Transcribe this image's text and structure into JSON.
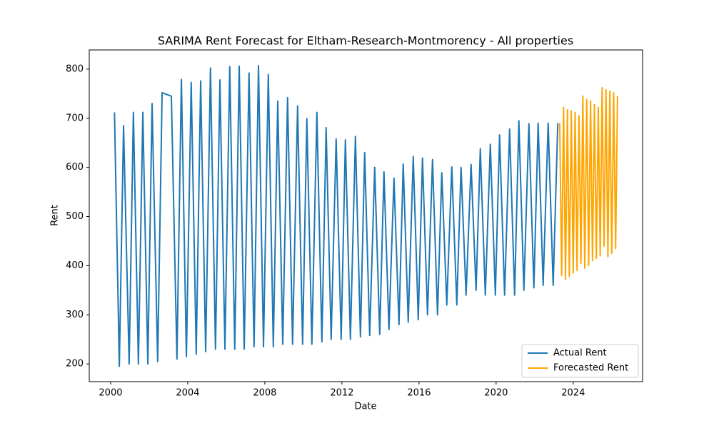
{
  "chart_data": {
    "type": "line",
    "title": "SARIMA Rent Forecast for Eltham-Research-Montmorency - All properties",
    "xlabel": "Date",
    "ylabel": "Rent",
    "xlim": [
      1998.89,
      2027.6
    ],
    "ylim": [
      164,
      839
    ],
    "xticks": [
      2000,
      2004,
      2008,
      2012,
      2016,
      2020,
      2024
    ],
    "yticks": [
      200,
      300,
      400,
      500,
      600,
      700,
      800
    ],
    "legend": "lower right",
    "series": [
      {
        "name": "Actual Rent",
        "color": "#1f77b4",
        "x": [
          2000.2,
          2000.45,
          2000.67,
          2000.96,
          2001.18,
          2001.44,
          2001.67,
          2001.93,
          2002.15,
          2002.44,
          2002.67,
          2003.15,
          2003.44,
          2003.67,
          2003.93,
          2004.18,
          2004.44,
          2004.67,
          2004.93,
          2005.18,
          2005.44,
          2005.67,
          2005.93,
          2006.18,
          2006.44,
          2006.67,
          2006.93,
          2007.18,
          2007.44,
          2007.67,
          2007.93,
          2008.18,
          2008.44,
          2008.67,
          2008.93,
          2009.18,
          2009.44,
          2009.7,
          2009.96,
          2010.18,
          2010.44,
          2010.7,
          2010.96,
          2011.18,
          2011.44,
          2011.7,
          2011.96,
          2012.18,
          2012.44,
          2012.7,
          2012.96,
          2013.18,
          2013.44,
          2013.7,
          2013.96,
          2014.18,
          2014.44,
          2014.7,
          2014.96,
          2015.18,
          2015.44,
          2015.7,
          2015.96,
          2016.18,
          2016.44,
          2016.7,
          2016.96,
          2017.18,
          2017.44,
          2017.7,
          2017.96,
          2018.18,
          2018.44,
          2018.7,
          2018.96,
          2019.18,
          2019.44,
          2019.7,
          2019.96,
          2020.18,
          2020.44,
          2020.7,
          2020.96,
          2021.18,
          2021.44,
          2021.7,
          2021.96,
          2022.18,
          2022.44,
          2022.7,
          2022.96,
          2023.2
        ],
        "values": [
          712,
          195,
          685,
          200,
          712,
          200,
          712,
          200,
          730,
          205,
          752,
          745,
          210,
          779,
          215,
          773,
          220,
          776,
          225,
          802,
          230,
          778,
          230,
          805,
          230,
          806,
          230,
          792,
          235,
          807,
          235,
          789,
          235,
          735,
          240,
          742,
          240,
          725,
          240,
          699,
          240,
          712,
          245,
          681,
          250,
          658,
          250,
          656,
          250,
          663,
          255,
          630,
          258,
          600,
          260,
          591,
          270,
          578,
          280,
          607,
          285,
          622,
          290,
          619,
          300,
          616,
          300,
          589,
          320,
          601,
          320,
          600,
          340,
          606,
          350,
          638,
          340,
          647,
          340,
          666,
          340,
          678,
          340,
          695,
          350,
          689,
          355,
          690,
          360,
          690,
          360,
          690
        ]
      },
      {
        "name": "Forecasted Rent",
        "color": "#ffa500",
        "x": [
          2023.3,
          2023.4,
          2023.5,
          2023.6,
          2023.7,
          2023.8,
          2023.9,
          2024.0,
          2024.1,
          2024.2,
          2024.3,
          2024.4,
          2024.5,
          2024.6,
          2024.7,
          2024.8,
          2024.9,
          2025.0,
          2025.1,
          2025.2,
          2025.3,
          2025.4,
          2025.5,
          2025.6,
          2025.7,
          2025.8,
          2025.9,
          2026.0,
          2026.1,
          2026.2,
          2026.3
        ],
        "values": [
          690,
          380,
          722,
          372,
          717,
          378,
          715,
          385,
          712,
          390,
          705,
          405,
          745,
          395,
          738,
          400,
          735,
          410,
          728,
          415,
          722,
          420,
          762,
          440,
          758,
          418,
          755,
          425,
          752,
          435,
          745
        ]
      }
    ]
  }
}
